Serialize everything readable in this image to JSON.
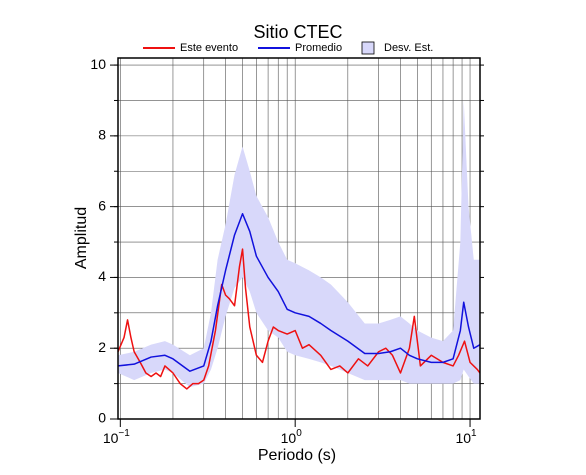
{
  "chart_data": {
    "type": "line",
    "title": "Sitio CTEC",
    "x_label": "Periodo (s)",
    "y_label": "Amplitud",
    "xscale": "log",
    "xlim": [
      0.097,
      11.4
    ],
    "ylim": [
      0,
      10.2
    ],
    "xticks": [
      {
        "value": 0.1,
        "label": "10",
        "exponent": "−1"
      },
      {
        "value": 1,
        "label": "10",
        "exponent": "0"
      },
      {
        "value": 10,
        "label": "10",
        "exponent": "1"
      }
    ],
    "yticks": [
      0,
      2,
      4,
      6,
      8,
      10
    ],
    "xgrid": [
      0.2,
      0.3,
      0.4,
      0.5,
      0.6,
      0.7,
      0.8,
      0.9,
      2,
      3,
      4,
      5,
      6,
      7,
      8,
      9
    ],
    "ygrid": [
      1,
      2,
      3,
      4,
      5,
      6,
      7,
      8,
      9,
      10
    ],
    "legend": "top",
    "series": [
      {
        "name": "Este evento",
        "color": "#ee1111",
        "x": [
          0.097,
          0.105,
          0.11,
          0.115,
          0.12,
          0.13,
          0.14,
          0.15,
          0.16,
          0.17,
          0.18,
          0.2,
          0.22,
          0.24,
          0.26,
          0.28,
          0.3,
          0.32,
          0.35,
          0.38,
          0.4,
          0.42,
          0.45,
          0.48,
          0.5,
          0.52,
          0.55,
          0.6,
          0.65,
          0.7,
          0.75,
          0.8,
          0.9,
          1.0,
          1.1,
          1.2,
          1.4,
          1.6,
          1.8,
          2.0,
          2.3,
          2.6,
          3.0,
          3.3,
          3.6,
          4.0,
          4.5,
          4.8,
          5.2,
          6,
          7,
          8,
          8.6,
          9.3,
          10,
          11,
          11.4
        ],
        "values": [
          1.9,
          2.3,
          2.8,
          2.3,
          1.9,
          1.6,
          1.3,
          1.2,
          1.3,
          1.2,
          1.5,
          1.3,
          1.0,
          0.85,
          1.0,
          1.0,
          1.1,
          1.5,
          2.5,
          3.8,
          3.5,
          3.4,
          3.2,
          4.3,
          4.8,
          3.7,
          2.6,
          1.8,
          1.6,
          2.2,
          2.6,
          2.5,
          2.4,
          2.5,
          2.0,
          2.1,
          1.8,
          1.4,
          1.5,
          1.3,
          1.7,
          1.5,
          1.9,
          2.0,
          1.8,
          1.3,
          2.0,
          2.9,
          1.5,
          1.8,
          1.6,
          1.5,
          1.8,
          2.2,
          1.6,
          1.4,
          1.3
        ]
      },
      {
        "name": "Promedio",
        "color": "#1111dd",
        "x": [
          0.097,
          0.12,
          0.15,
          0.18,
          0.2,
          0.25,
          0.3,
          0.33,
          0.36,
          0.4,
          0.45,
          0.5,
          0.55,
          0.6,
          0.7,
          0.8,
          0.9,
          1.0,
          1.2,
          1.4,
          1.6,
          2.0,
          2.5,
          3,
          3.5,
          4,
          4.5,
          5,
          6,
          7,
          8,
          8.8,
          9.2,
          9.8,
          10.5,
          11.4
        ],
        "values": [
          1.5,
          1.55,
          1.75,
          1.8,
          1.7,
          1.35,
          1.5,
          2.2,
          3.2,
          4.2,
          5.2,
          5.8,
          5.3,
          4.6,
          4.0,
          3.6,
          3.1,
          3.0,
          2.9,
          2.7,
          2.5,
          2.2,
          1.85,
          1.85,
          1.9,
          2.0,
          1.8,
          1.7,
          1.6,
          1.6,
          1.7,
          2.5,
          3.3,
          2.6,
          2.0,
          2.1
        ]
      },
      {
        "name": "Desv. Est.",
        "type": "band",
        "color": "#d8d8fa",
        "x": [
          0.097,
          0.12,
          0.15,
          0.18,
          0.2,
          0.25,
          0.3,
          0.33,
          0.36,
          0.4,
          0.45,
          0.5,
          0.55,
          0.6,
          0.7,
          0.8,
          0.9,
          1.0,
          1.2,
          1.4,
          1.6,
          2.0,
          2.5,
          3,
          3.5,
          4,
          4.5,
          5,
          6,
          7,
          8,
          8.8,
          9.2,
          9.8,
          10.5,
          11.4
        ],
        "upper": [
          1.8,
          1.9,
          2.1,
          2.2,
          2.1,
          1.8,
          2.0,
          3.0,
          4.5,
          5.5,
          6.9,
          7.7,
          7.0,
          6.3,
          5.7,
          5.0,
          4.5,
          4.4,
          4.2,
          4.0,
          3.8,
          3.3,
          2.7,
          2.7,
          2.8,
          2.9,
          2.7,
          2.5,
          2.3,
          2.2,
          2.5,
          5.0,
          9.0,
          6.0,
          4.5,
          4.5
        ],
        "lower": [
          1.3,
          1.1,
          1.3,
          1.4,
          1.3,
          0.9,
          1.0,
          1.4,
          2.0,
          2.9,
          3.7,
          4.0,
          3.6,
          3.0,
          2.5,
          2.3,
          1.9,
          1.8,
          1.7,
          1.6,
          1.5,
          1.3,
          1.1,
          1.1,
          1.1,
          1.1,
          1.0,
          1.0,
          1.0,
          1.0,
          1.0,
          1.1,
          1.4,
          1.2,
          1.0,
          1.0
        ]
      }
    ]
  }
}
